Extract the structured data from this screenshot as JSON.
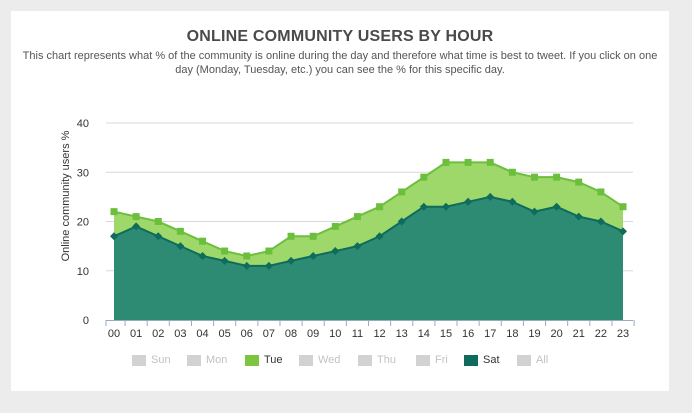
{
  "header": {
    "title": "ONLINE COMMUNITY USERS BY HOUR",
    "subtitle": "This chart represents what % of the community is online during the day and therefore what time is best to tweet. If you click on one day (Monday, Tuesday, etc.) you can see the % for this specific day."
  },
  "legend": {
    "items": [
      {
        "label": "Sun",
        "active": false
      },
      {
        "label": "Mon",
        "active": false
      },
      {
        "label": "Tue",
        "active": true,
        "color": "#7dc43f"
      },
      {
        "label": "Wed",
        "active": false
      },
      {
        "label": "Thu",
        "active": false
      },
      {
        "label": "Fri",
        "active": false
      },
      {
        "label": "Sat",
        "active": true,
        "color": "#0f6b5c"
      },
      {
        "label": "All",
        "active": false
      }
    ]
  },
  "colors": {
    "tue_fill": "#9ed86a",
    "tue_line": "#6cbf3c",
    "sat_fill": "#2e8b73",
    "sat_line": "#0f6b5c",
    "inactive": "#d2d2d2",
    "grid": "#d8d8d8"
  },
  "chart_data": {
    "type": "area",
    "title": "ONLINE COMMUNITY USERS BY HOUR",
    "xlabel": "",
    "ylabel": "Online community users %",
    "ylim": [
      0,
      40
    ],
    "yticks": [
      0,
      10,
      20,
      30,
      40
    ],
    "grid": true,
    "legend_position": "bottom",
    "categories": [
      "00",
      "01",
      "02",
      "03",
      "04",
      "05",
      "06",
      "07",
      "08",
      "09",
      "10",
      "11",
      "12",
      "13",
      "14",
      "15",
      "16",
      "17",
      "18",
      "19",
      "20",
      "21",
      "22",
      "23"
    ],
    "series": [
      {
        "name": "Tue",
        "values": [
          22,
          21,
          20,
          18,
          16,
          14,
          13,
          14,
          17,
          17,
          19,
          21,
          23,
          26,
          29,
          32,
          32,
          32,
          30,
          29,
          29,
          28,
          26,
          23
        ]
      },
      {
        "name": "Sat",
        "values": [
          17,
          19,
          17,
          15,
          13,
          12,
          11,
          11,
          12,
          13,
          14,
          15,
          17,
          20,
          23,
          23,
          24,
          25,
          24,
          22,
          23,
          21,
          20,
          18
        ]
      }
    ]
  }
}
